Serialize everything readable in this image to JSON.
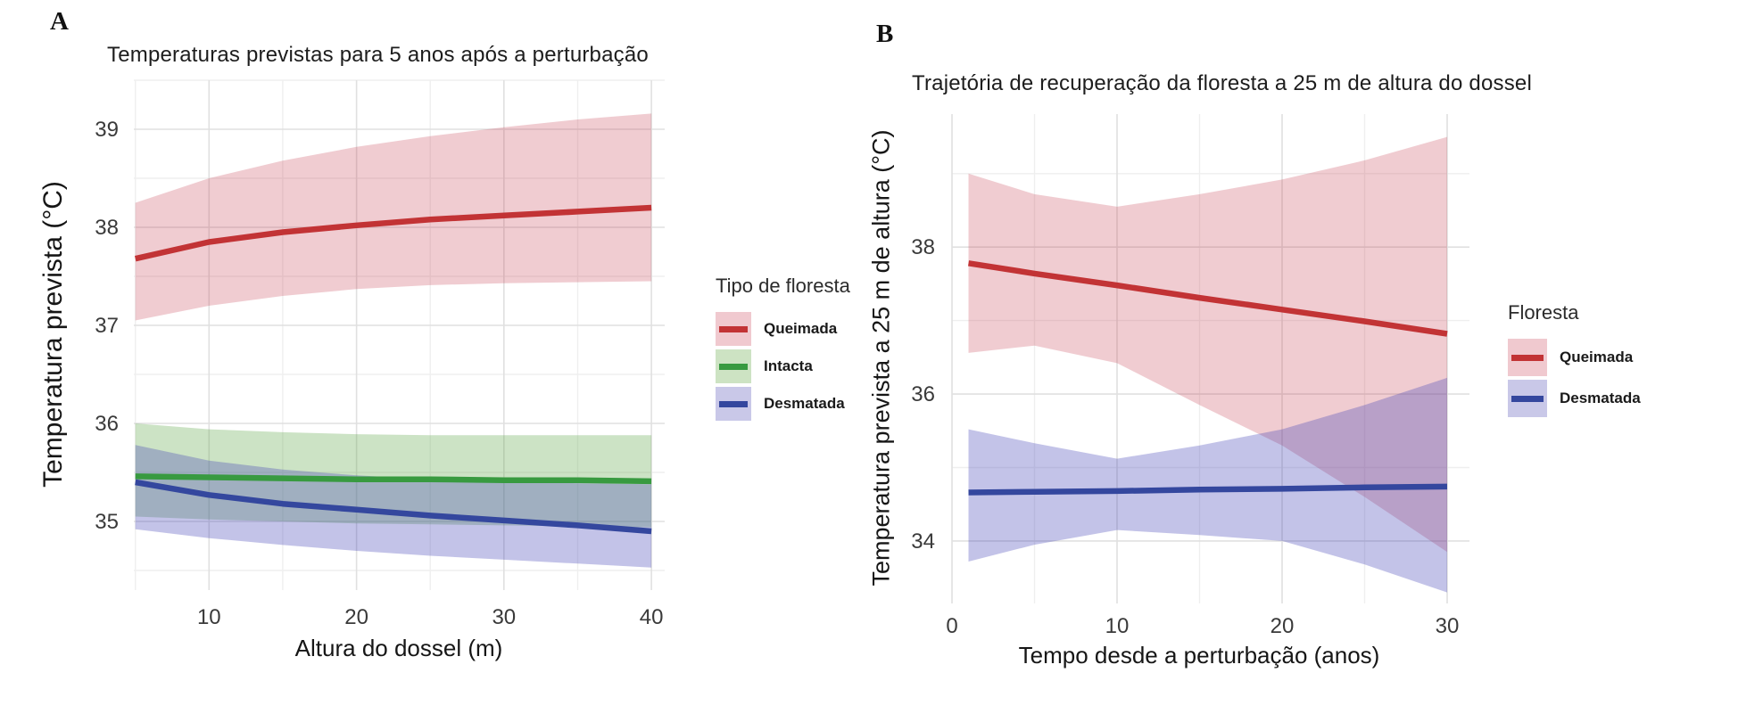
{
  "figure": {
    "background": "#ffffff",
    "grid_major_color": "#e0e0e0",
    "grid_minor_color": "#efefef"
  },
  "chart_data": [
    {
      "type": "line",
      "panel_label": "A",
      "title": "Temperaturas previstas para 5 anos após a perturbação",
      "xlabel": "Altura do dossel (m)",
      "ylabel": "Temperatura prevista (°C)",
      "legend_title": "Tipo de floresta",
      "legend_position": "right",
      "grid": true,
      "x": [
        5,
        10,
        15,
        20,
        25,
        30,
        35,
        40
      ],
      "xticks": [
        10,
        20,
        30,
        40
      ],
      "xticks_minor": [
        5,
        15,
        25,
        35
      ],
      "yticks": [
        35,
        36,
        37,
        38,
        39
      ],
      "yticks_minor": [
        34.5,
        35.5,
        36.5,
        37.5,
        38.5,
        39.5
      ],
      "xlim": [
        4.9,
        40.9
      ],
      "ylim": [
        34.3,
        39.5
      ],
      "series": [
        {
          "name": "Queimada",
          "color": "#c23335",
          "band_color": "rgba(196,52,70,0.25)",
          "swatch_fill": "#f0c9cf",
          "values": [
            37.68,
            37.85,
            37.95,
            38.02,
            38.08,
            38.12,
            38.16,
            38.2
          ],
          "upper": [
            38.25,
            38.5,
            38.68,
            38.82,
            38.93,
            39.02,
            39.1,
            39.16
          ],
          "lower": [
            37.05,
            37.2,
            37.3,
            37.37,
            37.41,
            37.43,
            37.44,
            37.45
          ]
        },
        {
          "name": "Intacta",
          "color": "#389a40",
          "band_color": "rgba(100,170,80,0.33)",
          "swatch_fill": "#cde3c3",
          "values": [
            35.46,
            35.45,
            35.44,
            35.43,
            35.43,
            35.42,
            35.42,
            35.41
          ],
          "upper": [
            36.0,
            35.94,
            35.91,
            35.89,
            35.88,
            35.88,
            35.88,
            35.88
          ],
          "lower": [
            35.05,
            35.02,
            35.0,
            34.98,
            34.97,
            34.96,
            34.95,
            34.94
          ]
        },
        {
          "name": "Desmatada",
          "color": "#34479e",
          "band_color": "rgba(60,60,180,0.31)",
          "swatch_fill": "#c9c8e8",
          "values": [
            35.4,
            35.27,
            35.18,
            35.12,
            35.06,
            35.01,
            34.96,
            34.9
          ],
          "upper": [
            35.78,
            35.62,
            35.53,
            35.47,
            35.43,
            35.4,
            35.39,
            35.38
          ],
          "lower": [
            34.92,
            34.83,
            34.76,
            34.7,
            34.65,
            34.61,
            34.57,
            34.53
          ]
        }
      ]
    },
    {
      "type": "line",
      "panel_label": "B",
      "title": "Trajetória de recuperação da floresta a 25 m de altura do dossel",
      "xlabel": "Tempo desde a perturbação (anos)",
      "ylabel": "Temperatura prevista a 25 m de altura (°C)",
      "legend_title": "Floresta",
      "legend_position": "right",
      "grid": true,
      "x": [
        1,
        5,
        10,
        15,
        20,
        25,
        30
      ],
      "xticks": [
        0,
        10,
        20,
        30
      ],
      "xticks_minor": [
        5,
        15,
        25
      ],
      "yticks": [
        34,
        36,
        38
      ],
      "yticks_minor": [
        35,
        37,
        39
      ],
      "xlim": [
        0,
        31.35
      ],
      "ylim": [
        33.15,
        39.81
      ],
      "series": [
        {
          "name": "Queimada",
          "color": "#c23335",
          "band_color": "rgba(196,52,70,0.25)",
          "swatch_fill": "#f0c9cf",
          "values": [
            37.78,
            37.64,
            37.48,
            37.31,
            37.15,
            36.99,
            36.82
          ],
          "upper": [
            39.0,
            38.72,
            38.55,
            38.72,
            38.92,
            39.18,
            39.5
          ],
          "lower": [
            36.56,
            36.66,
            36.42,
            35.85,
            35.3,
            34.6,
            33.85
          ]
        },
        {
          "name": "Desmatada",
          "color": "#34479e",
          "band_color": "rgba(60,60,180,0.31)",
          "swatch_fill": "#c9c8e8",
          "values": [
            34.66,
            34.67,
            34.68,
            34.7,
            34.71,
            34.73,
            34.74
          ],
          "upper": [
            35.52,
            35.33,
            35.12,
            35.3,
            35.52,
            35.85,
            36.22
          ],
          "lower": [
            33.72,
            33.95,
            34.15,
            34.08,
            34.0,
            33.68,
            33.3
          ]
        }
      ]
    }
  ]
}
